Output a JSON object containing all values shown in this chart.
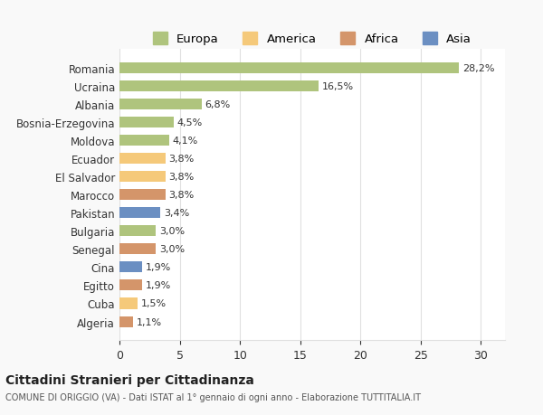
{
  "categories": [
    "Algeria",
    "Cuba",
    "Egitto",
    "Cina",
    "Senegal",
    "Bulgaria",
    "Pakistan",
    "Marocco",
    "El Salvador",
    "Ecuador",
    "Moldova",
    "Bosnia-Erzegovina",
    "Albania",
    "Ucraina",
    "Romania"
  ],
  "values": [
    1.1,
    1.5,
    1.9,
    1.9,
    3.0,
    3.0,
    3.4,
    3.8,
    3.8,
    3.8,
    4.1,
    4.5,
    6.8,
    16.5,
    28.2
  ],
  "labels": [
    "1,1%",
    "1,5%",
    "1,9%",
    "1,9%",
    "3,0%",
    "3,0%",
    "3,4%",
    "3,8%",
    "3,8%",
    "3,8%",
    "4,1%",
    "4,5%",
    "6,8%",
    "16,5%",
    "28,2%"
  ],
  "colors": [
    "#d4956a",
    "#f5c97a",
    "#d4956a",
    "#6b8fc2",
    "#d4956a",
    "#afc47d",
    "#6b8fc2",
    "#d4956a",
    "#f5c97a",
    "#f5c97a",
    "#afc47d",
    "#afc47d",
    "#afc47d",
    "#afc47d",
    "#afc47d"
  ],
  "legend_names": [
    "Europa",
    "America",
    "Africa",
    "Asia"
  ],
  "legend_colors": [
    "#afc47d",
    "#f5c97a",
    "#d4956a",
    "#6b8fc2"
  ],
  "title": "Cittadini Stranieri per Cittadinanza",
  "subtitle": "COMUNE DI ORIGGIO (VA) - Dati ISTAT al 1° gennaio di ogni anno - Elaborazione TUTTITALIA.IT",
  "xlim": [
    0,
    32
  ],
  "xticks": [
    0,
    5,
    10,
    15,
    20,
    25,
    30
  ],
  "bg_color": "#f9f9f9",
  "plot_bg_color": "#ffffff",
  "bar_height": 0.6,
  "grid_color": "#e0e0e0",
  "text_color": "#333333"
}
